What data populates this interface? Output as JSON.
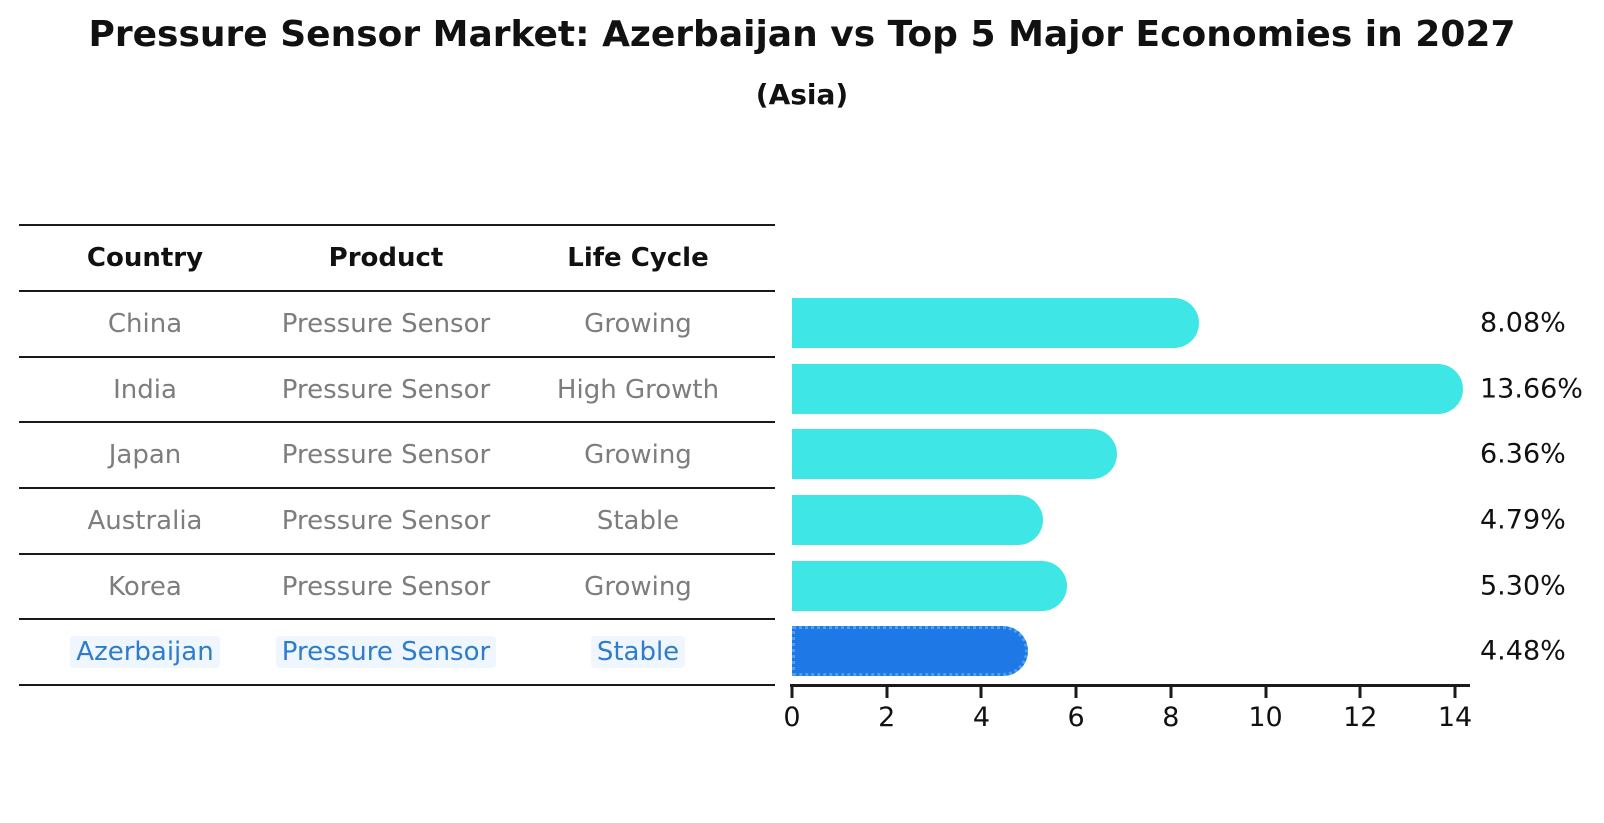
{
  "title": "Pressure Sensor Market: Azerbaijan vs Top 5 Major Economies in 2027",
  "subtitle": "(Asia)",
  "table": {
    "headers": [
      "Country",
      "Product",
      "Life Cycle"
    ],
    "rows": [
      {
        "country": "China",
        "product": "Pressure Sensor",
        "life_cycle": "Growing",
        "highlight": false
      },
      {
        "country": "India",
        "product": "Pressure Sensor",
        "life_cycle": "High Growth",
        "highlight": false
      },
      {
        "country": "Japan",
        "product": "Pressure Sensor",
        "life_cycle": "Growing",
        "highlight": false
      },
      {
        "country": "Australia",
        "product": "Pressure Sensor",
        "life_cycle": "Stable",
        "highlight": false
      },
      {
        "country": "Korea",
        "product": "Pressure Sensor",
        "life_cycle": "Growing",
        "highlight": false
      },
      {
        "country": "Azerbaijan",
        "product": "Pressure Sensor",
        "life_cycle": "Stable",
        "highlight": true
      }
    ]
  },
  "chart_data": {
    "type": "bar",
    "orientation": "horizontal",
    "title": "Pressure Sensor Market: Azerbaijan vs Top 5 Major Economies in 2027",
    "subtitle": "(Asia)",
    "categories": [
      "China",
      "India",
      "Japan",
      "Australia",
      "Korea",
      "Azerbaijan"
    ],
    "values": [
      8.08,
      13.66,
      6.36,
      4.79,
      5.3,
      4.48
    ],
    "value_labels": [
      "8.08%",
      "13.66%",
      "6.36%",
      "4.79%",
      "5.30%",
      "4.48%"
    ],
    "xlim": [
      0,
      14
    ],
    "x_ticks": [
      "0",
      "2",
      "4",
      "6",
      "8",
      "10",
      "12",
      "14"
    ],
    "grid": false,
    "legend": false,
    "bar_color": "#3ee6e6",
    "highlight_bar_color": "#1e78e5",
    "highlight_index": 5
  },
  "colors": {
    "bar_cyan": "#3ee6e6",
    "bar_blue": "#1e78e5",
    "table_text_gray": "#7d7d7d",
    "highlight_text_blue": "#2e7dcc",
    "axis_black": "#1a1a1a"
  }
}
